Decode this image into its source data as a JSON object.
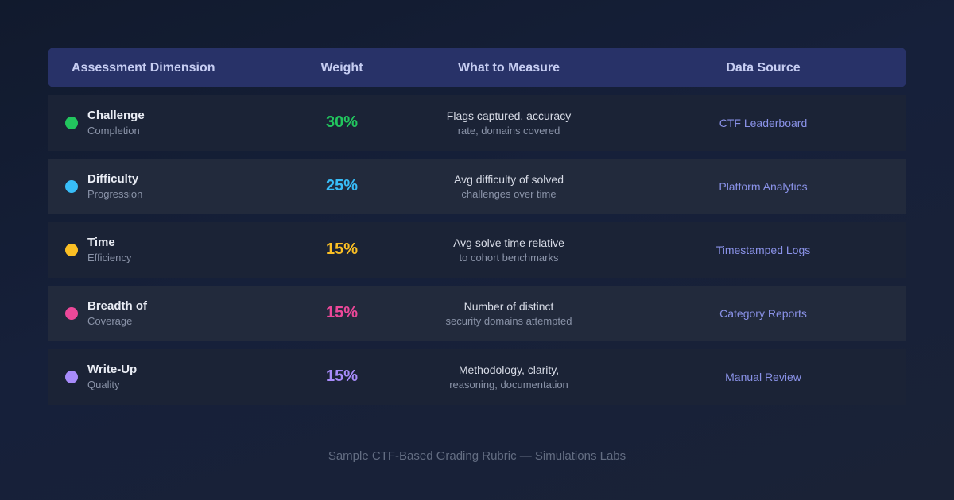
{
  "header": {
    "dimension": "Assessment Dimension",
    "weight": "Weight",
    "measure": "What to Measure",
    "source": "Data Source"
  },
  "rows": [
    {
      "title": "Challenge",
      "subtitle": "Completion",
      "weight": "30%",
      "measure_line1": "Flags captured, accuracy",
      "measure_line2": "rate, domains covered",
      "source": "CTF Leaderboard",
      "color": "#22c55e"
    },
    {
      "title": "Difficulty",
      "subtitle": "Progression",
      "weight": "25%",
      "measure_line1": "Avg difficulty of solved",
      "measure_line2": "challenges over time",
      "source": "Platform Analytics",
      "color": "#38bdf8"
    },
    {
      "title": "Time",
      "subtitle": "Efficiency",
      "weight": "15%",
      "measure_line1": "Avg solve time relative",
      "measure_line2": "to cohort benchmarks",
      "source": "Timestamped Logs",
      "color": "#fbbf24"
    },
    {
      "title": "Breadth of",
      "subtitle": "Coverage",
      "weight": "15%",
      "measure_line1": "Number of distinct",
      "measure_line2": "security domains attempted",
      "source": "Category Reports",
      "color": "#ec4899"
    },
    {
      "title": "Write-Up",
      "subtitle": "Quality",
      "weight": "15%",
      "measure_line1": "Methodology, clarity,",
      "measure_line2": "reasoning, documentation",
      "source": "Manual Review",
      "color": "#a78bfa"
    }
  ],
  "footer": "Sample CTF-Based Grading Rubric — Simulations Labs"
}
